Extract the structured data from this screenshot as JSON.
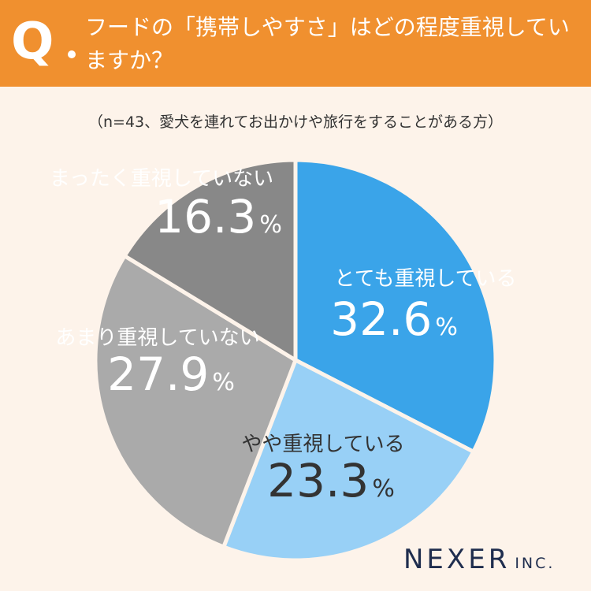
{
  "header": {
    "q_label": "Q",
    "question": "フードの「携帯しやすさ」はどの程度重視していますか？"
  },
  "sample_note": "（n=43、愛犬を連れてお出かけや旅行をすることがある方）",
  "chart_data": {
    "type": "pie",
    "title": "フードの「携帯しやすさ」はどの程度重視していますか？",
    "unit": "%",
    "slices": [
      {
        "label": "とても重視している",
        "value": 32.6,
        "display": "32.6",
        "color": "#3AA4E9",
        "text_color": "#FFFFFF"
      },
      {
        "label": "やや重視している",
        "value": 23.3,
        "display": "23.3",
        "color": "#98D0F6",
        "text_color": "#333333"
      },
      {
        "label": "あまり重視していない",
        "value": 27.9,
        "display": "27.9",
        "color": "#AAAAAA",
        "text_color": "#FFFFFF"
      },
      {
        "label": "まったく重視していない",
        "value": 16.3,
        "display": "16.3",
        "color": "#888888",
        "text_color": "#FFFFFF"
      }
    ]
  },
  "logo": {
    "main": "NEXER",
    "sub": "INC."
  }
}
